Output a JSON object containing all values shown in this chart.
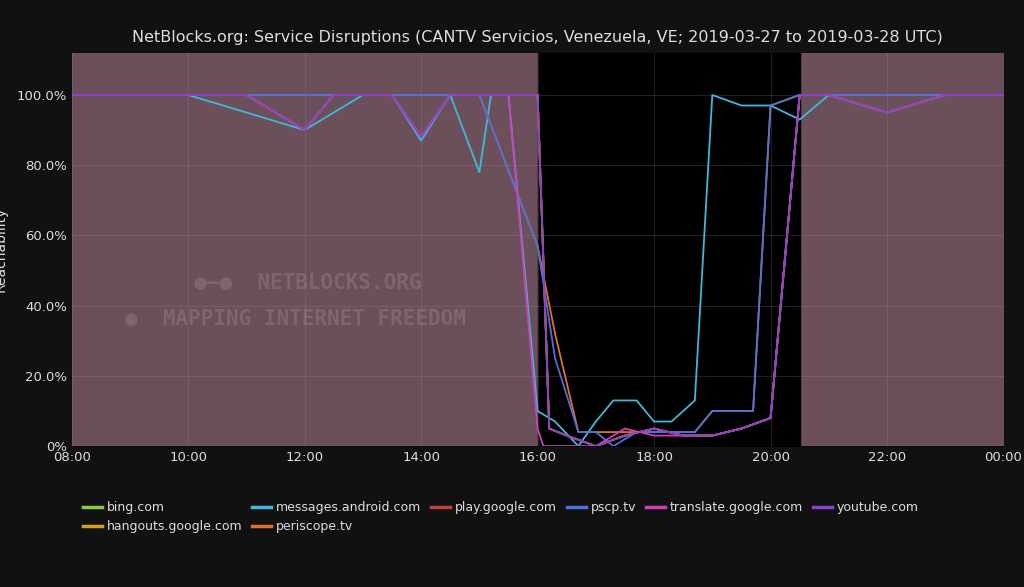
{
  "title": "NetBlocks.org: Service Disruptions (CANTV Servicios, Venezuela, VE; 2019-03-27 to 2019-03-28 UTC)",
  "ylabel": "Reachability",
  "bg_color": "#111111",
  "plot_bg_color": "#6b4f5a",
  "text_color": "#dddddd",
  "grid_color": "#999999",
  "title_fontsize": 11.5,
  "label_fontsize": 10,
  "tick_fontsize": 9.5,
  "legend_fontsize": 9,
  "x_labels": [
    "08:00",
    "10:00",
    "12:00",
    "14:00",
    "16:00",
    "18:00",
    "20:00",
    "22:00",
    "00:00"
  ],
  "x_tick_pos": [
    0,
    2,
    4,
    6,
    8,
    10,
    12,
    14,
    16
  ],
  "y_tick_vals": [
    0,
    20,
    40,
    60,
    80,
    100
  ],
  "y_tick_labels": [
    "0%",
    "20.0%",
    "40.0%",
    "60.0%",
    "80.0%",
    "100.0%"
  ],
  "xlim": [
    0,
    16
  ],
  "ylim": [
    0,
    112
  ],
  "blackout_start": 8,
  "blackout_end": 12.5,
  "series": {
    "bing.com": {
      "color": "#88cc44",
      "x": [
        0,
        1,
        2,
        3,
        4,
        4.5,
        5,
        5.5,
        6,
        6.5,
        7,
        7.5,
        8,
        8.2,
        8.5,
        9,
        9.5,
        10,
        10.5,
        11,
        11.5,
        12,
        12.5,
        13,
        14,
        15,
        16
      ],
      "y": [
        100,
        100,
        100,
        100,
        90,
        100,
        100,
        100,
        88,
        100,
        100,
        100,
        100,
        5,
        3,
        0,
        3,
        5,
        3,
        3,
        5,
        8,
        100,
        100,
        95,
        100,
        100
      ]
    },
    "hangouts.google.com": {
      "color": "#d4a020",
      "x": [
        0,
        1,
        2,
        3,
        4,
        4.5,
        5,
        5.5,
        6,
        6.5,
        7,
        7.5,
        8,
        8.2,
        8.5,
        9,
        9.5,
        10,
        10.5,
        11,
        11.5,
        12,
        12.5,
        13,
        14,
        15,
        16
      ],
      "y": [
        100,
        100,
        100,
        100,
        90,
        100,
        100,
        100,
        88,
        100,
        100,
        100,
        100,
        5,
        3,
        0,
        3,
        5,
        3,
        3,
        5,
        8,
        100,
        100,
        95,
        100,
        100
      ]
    },
    "messages.android.com": {
      "color": "#40b8d8",
      "x": [
        0,
        2,
        4,
        5,
        5.5,
        6,
        6.5,
        7,
        7.2,
        7.5,
        8,
        8.3,
        8.7,
        9,
        9.3,
        9.7,
        10,
        10.3,
        10.7,
        11,
        11.5,
        12,
        12.5,
        13,
        13.5,
        14,
        15,
        16
      ],
      "y": [
        100,
        100,
        90,
        100,
        100,
        87,
        100,
        78,
        100,
        100,
        10,
        7,
        0,
        7,
        13,
        13,
        7,
        7,
        13,
        100,
        97,
        97,
        93,
        100,
        100,
        100,
        100,
        100
      ]
    },
    "periscope.tv": {
      "color": "#e07030",
      "x": [
        0,
        2,
        4,
        6,
        7,
        8,
        8.3,
        8.7,
        9,
        9.3,
        9.7,
        10,
        10.3,
        10.7,
        11,
        11.3,
        11.7,
        12,
        12.5,
        13,
        14,
        15,
        16
      ],
      "y": [
        100,
        100,
        100,
        100,
        100,
        57,
        32,
        4,
        4,
        4,
        4,
        4,
        4,
        4,
        10,
        10,
        10,
        97,
        100,
        100,
        100,
        100,
        100
      ]
    },
    "play.google.com": {
      "color": "#c04040",
      "x": [
        0,
        1,
        2,
        3,
        4,
        4.5,
        5,
        5.5,
        6,
        6.5,
        7,
        7.5,
        8,
        8.2,
        8.5,
        9,
        9.5,
        10,
        10.5,
        11,
        11.5,
        12,
        12.5,
        13,
        14,
        15,
        16
      ],
      "y": [
        100,
        100,
        100,
        100,
        90,
        100,
        100,
        100,
        88,
        100,
        100,
        100,
        100,
        5,
        3,
        0,
        3,
        5,
        3,
        3,
        5,
        8,
        100,
        100,
        95,
        100,
        100
      ]
    },
    "pscp.tv": {
      "color": "#5070d8",
      "x": [
        0,
        2,
        4,
        6,
        7,
        8,
        8.3,
        8.7,
        9,
        9.3,
        9.7,
        10,
        10.3,
        10.7,
        11,
        11.3,
        11.7,
        12,
        12.5,
        13,
        14,
        15,
        16
      ],
      "y": [
        100,
        100,
        100,
        100,
        100,
        57,
        25,
        4,
        4,
        0,
        4,
        4,
        4,
        4,
        10,
        10,
        10,
        97,
        100,
        100,
        100,
        100,
        100
      ]
    },
    "translate.google.com": {
      "color": "#cc40bb",
      "x": [
        0,
        1,
        2,
        3,
        4,
        4.5,
        5,
        5.5,
        6,
        6.5,
        7,
        7.5,
        8,
        8.1,
        8.2,
        8.5,
        9,
        9.5,
        10,
        10.5,
        11,
        11.5,
        12,
        12.5,
        13,
        14,
        15,
        16
      ],
      "y": [
        100,
        100,
        100,
        100,
        90,
        100,
        100,
        100,
        88,
        100,
        100,
        100,
        5,
        0,
        0,
        0,
        0,
        5,
        3,
        3,
        3,
        5,
        8,
        100,
        100,
        95,
        100,
        100
      ]
    },
    "youtube.com": {
      "color": "#8844cc",
      "x": [
        0,
        1,
        2,
        3,
        4,
        4.5,
        5,
        5.5,
        6,
        6.5,
        7,
        7.5,
        8,
        8.2,
        8.5,
        9,
        9.5,
        10,
        10.5,
        11,
        11.5,
        12,
        12.5,
        13,
        14,
        15,
        16
      ],
      "y": [
        100,
        100,
        100,
        100,
        90,
        100,
        100,
        100,
        88,
        100,
        100,
        100,
        100,
        5,
        3,
        0,
        3,
        5,
        3,
        3,
        5,
        8,
        100,
        100,
        95,
        100,
        100
      ]
    }
  }
}
